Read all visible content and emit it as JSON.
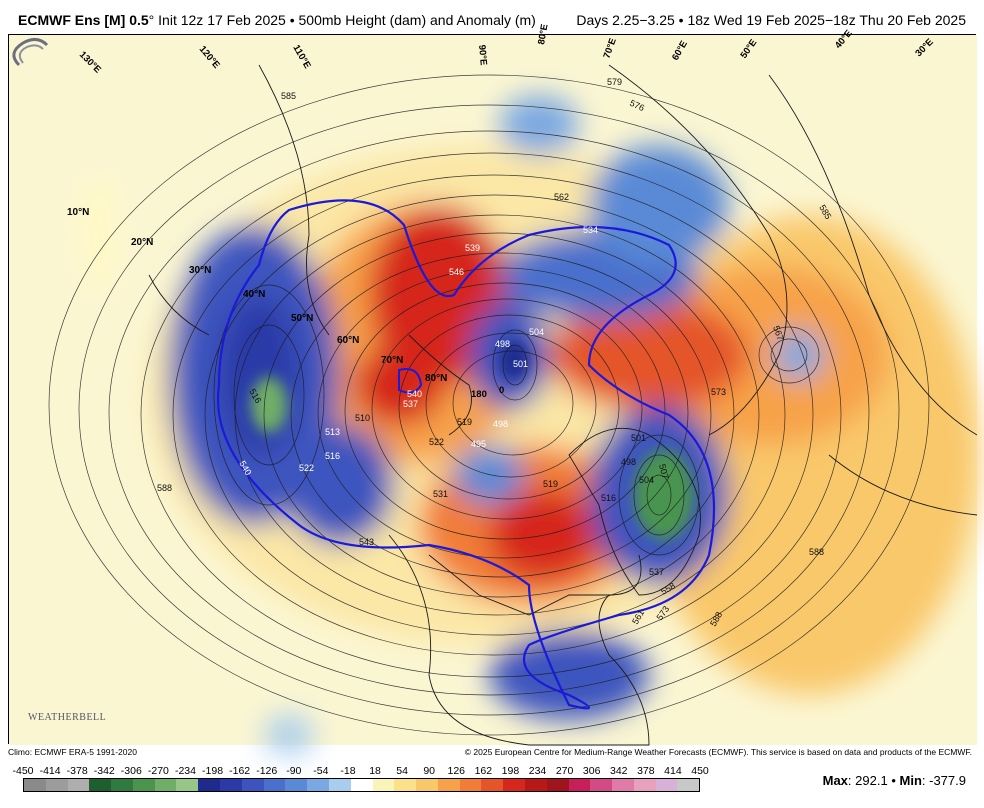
{
  "title": {
    "model": "ECMWF Ens [M] 0.5",
    "degree": "°",
    "init": "Init 12z 17 Feb 2025",
    "separator": "•",
    "field": "500mb Height (dam) and Anomaly (m)",
    "valid": "Days 2.25−3.25 • 18z Wed 19 Feb 2025−18z Thu 20 Feb 2025"
  },
  "map": {
    "latitude_labels": [
      "10°N",
      "20°N",
      "30°N",
      "40°N",
      "50°N",
      "60°N",
      "70°N",
      "80°N"
    ],
    "longitude_labels": [
      "130°E",
      "120°E",
      "110°E",
      "90°E",
      "80°E",
      "70°E",
      "60°E",
      "50°E",
      "40°E",
      "30°E",
      "180",
      "0"
    ],
    "contour_labels": [
      "585",
      "588",
      "588",
      "588",
      "573",
      "576",
      "579",
      "562",
      "567",
      "585",
      "546",
      "539",
      "534",
      "498",
      "504",
      "501",
      "498",
      "495",
      "516",
      "513",
      "516",
      "522",
      "540",
      "543",
      "522",
      "519",
      "510",
      "501",
      "498",
      "507",
      "504",
      "531",
      "537",
      "558",
      "561",
      "573",
      "516",
      "519",
      "540",
      "537"
    ],
    "anomaly_colors": {
      "strong_negative": "#2c3aa8",
      "negative": "#4a7fd0",
      "weak_negative": "#a9cdef",
      "extreme_negative": "#4f8f4f",
      "weak_positive": "#fbe7a6",
      "positive": "#f7a24a",
      "strong_positive": "#d6261e",
      "base": "#fbf6d2"
    },
    "contour_540_color": "#1a1ad8"
  },
  "branding": {
    "logo_text": "WEATHERBELL"
  },
  "footer": {
    "climo": "Climo: ECMWF ERA-5 1991-2020",
    "copyright": "© 2025 European Centre for Medium-Range Weather Forecasts (ECMWF). This service is based on data and products of the ECMWF."
  },
  "legend": {
    "ticks": [
      "-450",
      "-414",
      "-378",
      "-342",
      "-306",
      "-270",
      "-234",
      "-198",
      "-162",
      "-126",
      "-90",
      "-54",
      "-18",
      "18",
      "54",
      "90",
      "126",
      "162",
      "198",
      "234",
      "270",
      "306",
      "342",
      "378",
      "414",
      "450"
    ],
    "colors": [
      "#8a8a8a",
      "#9c9c9c",
      "#aeaeae",
      "#1f5f2f",
      "#2f7a3f",
      "#4a9450",
      "#6fae66",
      "#97c786",
      "#1e2a8e",
      "#2c3aa8",
      "#3d54be",
      "#4a6fcc",
      "#5a8ad6",
      "#7aa8e2",
      "#a9cdef",
      "#ffffff",
      "#fbf4b8",
      "#fbe28a",
      "#f9c86a",
      "#f7a24a",
      "#f17d38",
      "#e4552a",
      "#d6261e",
      "#b81818",
      "#a0141e",
      "#c81e5a",
      "#d44a86",
      "#e07aa6",
      "#e8a0bc",
      "#d8b0d8",
      "#c8c8c8"
    ]
  },
  "stats": {
    "max_label": "Max",
    "max_value": "292.1",
    "min_label": "Min",
    "min_value": "-377.9",
    "separator": "•"
  }
}
